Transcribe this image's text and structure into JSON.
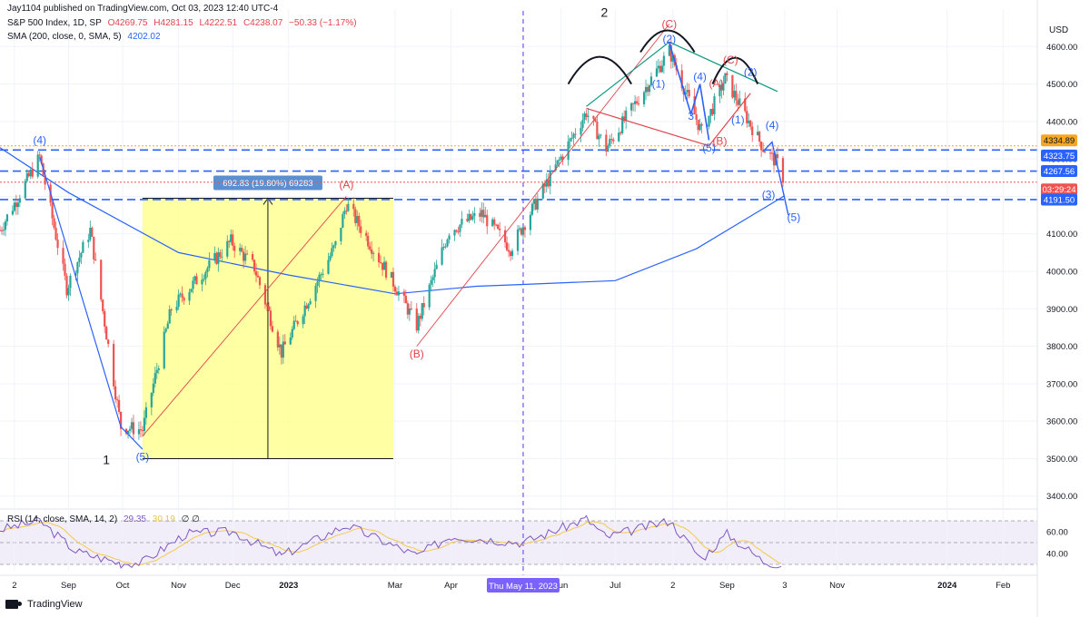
{
  "publisher": "Jay1104 published on TradingView.com, Oct 03, 2023 12:40 UTC-4",
  "header": {
    "symbol": "S&P 500 Index, 1D, SP",
    "open": "O4269.75",
    "high": "H4281.15",
    "low": "L4222.51",
    "close": "C4238.07",
    "change": "−50.33 (−1.17%)",
    "sma_label": "SMA (200, close, 0, SMA, 5)",
    "sma_value": "4202.02",
    "rsi_label": "RSI (14, close, SMA, 14, 2)",
    "rsi_value": "29.35",
    "rsi_sma_value": "30.19",
    "rsi_zeros": "∅ ∅"
  },
  "currency": "USD",
  "footer_brand": "TradingView",
  "colors": {
    "candle_up": "#26a69a",
    "candle_down": "#ef5350",
    "sma": "#2962ff",
    "rsi": "#7e57c2",
    "rsi_ma": "#f2c94c",
    "elliott_red": "#e0454b",
    "elliott_blue": "#2962ff",
    "highlight_box": "#ffff8c",
    "trendline_green": "#089981",
    "level_orange": "#f5a623"
  },
  "chart_data": {
    "type": "candlestick",
    "x_range": [
      "2022-07-25",
      "2024-02-20"
    ],
    "y_range": [
      3380,
      4700
    ],
    "time_ticks": [
      {
        "label": "2",
        "date": "2022-08-02"
      },
      {
        "label": "Sep",
        "date": "2022-09-01"
      },
      {
        "label": "Oct",
        "date": "2022-10-01"
      },
      {
        "label": "Nov",
        "date": "2022-11-01"
      },
      {
        "label": "Dec",
        "date": "2022-12-01"
      },
      {
        "label": "2023",
        "date": "2023-01-01"
      },
      {
        "label": "Mar",
        "date": "2023-03-01"
      },
      {
        "label": "Apr",
        "date": "2023-04-01"
      },
      {
        "label": "Jun",
        "date": "2023-06-01"
      },
      {
        "label": "Jul",
        "date": "2023-07-01"
      },
      {
        "label": "2",
        "date": "2023-08-02"
      },
      {
        "label": "Sep",
        "date": "2023-09-01"
      },
      {
        "label": "3",
        "date": "2023-10-03"
      },
      {
        "label": "Nov",
        "date": "2023-11-01"
      },
      {
        "label": "2024",
        "date": "2024-01-01"
      },
      {
        "label": "Feb",
        "date": "2024-02-01"
      }
    ],
    "price_ticks": [
      "3400.00",
      "3500.00",
      "3600.00",
      "3700.00",
      "3800.00",
      "3900.00",
      "4000.00",
      "4100.00",
      "4200.00",
      "4300.00",
      "4400.00",
      "4500.00",
      "4600.00"
    ],
    "crosshair_date_label": "Thu May 11, 2023",
    "crosshair_date": "2023-05-11",
    "price_path": [
      [
        "2022-07-25",
        4110
      ],
      [
        "2022-08-16",
        4305
      ],
      [
        "2022-08-31",
        3955
      ],
      [
        "2022-09-13",
        4110
      ],
      [
        "2022-09-30",
        3585
      ],
      [
        "2022-10-12",
        3577
      ],
      [
        "2022-10-28",
        3900
      ],
      [
        "2022-11-30",
        4080
      ],
      [
        "2022-12-13",
        4010
      ],
      [
        "2022-12-28",
        3783
      ],
      [
        "2023-01-27",
        4070
      ],
      [
        "2023-02-02",
        4180
      ],
      [
        "2023-02-28",
        3970
      ],
      [
        "2023-03-13",
        3855
      ],
      [
        "2023-03-31",
        4109
      ],
      [
        "2023-04-18",
        4154
      ],
      [
        "2023-05-04",
        4061
      ],
      [
        "2023-05-19",
        4191
      ],
      [
        "2023-06-15",
        4425
      ],
      [
        "2023-06-26",
        4328
      ],
      [
        "2023-07-31",
        4588
      ],
      [
        "2023-08-18",
        4370
      ],
      [
        "2023-08-31",
        4515
      ],
      [
        "2023-09-21",
        4330
      ],
      [
        "2023-09-29",
        4288
      ],
      [
        "2023-10-03",
        4238
      ]
    ],
    "sma200_path": [
      [
        "2022-07-25",
        4330
      ],
      [
        "2022-09-01",
        4210
      ],
      [
        "2022-11-01",
        4050
      ],
      [
        "2023-01-01",
        3990
      ],
      [
        "2023-03-01",
        3940
      ],
      [
        "2023-04-15",
        3960
      ],
      [
        "2023-05-11",
        3965
      ],
      [
        "2023-07-01",
        3975
      ],
      [
        "2023-08-15",
        4060
      ],
      [
        "2023-10-03",
        4202
      ]
    ],
    "price_levels": [
      {
        "value": 4334.89,
        "label": "4334.89",
        "style": "dotted",
        "color": "#f5a623"
      },
      {
        "value": 4323.75,
        "label": "4323.75",
        "style": "dashed",
        "color": "#2962ff"
      },
      {
        "value": 4267.56,
        "label": "4267.56",
        "style": "dashed",
        "color": "#2962ff"
      },
      {
        "value": 4191.5,
        "label": "4191.50",
        "style": "dashed",
        "color": "#2962ff"
      },
      {
        "value": 4238.07,
        "label": "03:29:24",
        "style": "dotted",
        "color": "#ef5350"
      }
    ],
    "measure_box": {
      "start": "2022-10-12",
      "end": "2023-02-28",
      "low": 3500,
      "high": 4195,
      "label": "692.83 (19.80%) 69283"
    },
    "wave_labels": [
      {
        "text": "(4)",
        "date": "2022-08-16",
        "price": 4340,
        "color": "blue"
      },
      {
        "text": "(5)",
        "date": "2022-10-12",
        "price": 3495,
        "color": "blue"
      },
      {
        "text": "1",
        "date": "2022-09-22",
        "price": 3485,
        "color": "black"
      },
      {
        "text": "(A)",
        "date": "2023-02-02",
        "price": 4222,
        "color": "red"
      },
      {
        "text": "(B)",
        "date": "2023-03-13",
        "price": 3770,
        "color": "red"
      },
      {
        "text": "2",
        "date": "2023-06-25",
        "price": 4680,
        "color": "black"
      },
      {
        "text": "(C)",
        "date": "2023-07-31",
        "price": 4650,
        "color": "red"
      },
      {
        "text": "(2)",
        "date": "2023-07-31",
        "price": 4610,
        "color": "blue"
      },
      {
        "text": "(1)",
        "date": "2023-07-25",
        "price": 4490,
        "color": "blue"
      },
      {
        "text": "(4)",
        "date": "2023-08-17",
        "price": 4510,
        "color": "blue"
      },
      {
        "text": "3",
        "date": "2023-08-12",
        "price": 4405,
        "color": "blue"
      },
      {
        "text": "(A)",
        "date": "2023-08-26",
        "price": 4492,
        "color": "red"
      },
      {
        "text": "(C)",
        "date": "2023-09-03",
        "price": 4555,
        "color": "red"
      },
      {
        "text": "(2)",
        "date": "2023-09-14",
        "price": 4522,
        "color": "blue"
      },
      {
        "text": "(B)",
        "date": "2023-08-28",
        "price": 4338,
        "color": "red"
      },
      {
        "text": "(5)",
        "date": "2023-08-22",
        "price": 4320,
        "color": "blue"
      },
      {
        "text": "(1)",
        "date": "2023-09-07",
        "price": 4395,
        "color": "blue"
      },
      {
        "text": "(4)",
        "date": "2023-09-26",
        "price": 4380,
        "color": "blue"
      },
      {
        "text": "(3)",
        "date": "2023-09-24",
        "price": 4195,
        "color": "blue"
      },
      {
        "text": "(5)",
        "date": "2023-10-08",
        "price": 4135,
        "color": "blue"
      }
    ],
    "rsi": {
      "y_ticks": [
        "60.00",
        "40.00"
      ],
      "upper_band": 70,
      "mid_band": 50,
      "lower_band": 30,
      "path": [
        [
          "2022-07-25",
          62
        ],
        [
          "2022-08-16",
          70
        ],
        [
          "2022-09-05",
          42
        ],
        [
          "2022-09-30",
          31
        ],
        [
          "2022-10-12",
          32
        ],
        [
          "2022-11-05",
          58
        ],
        [
          "2022-12-01",
          60
        ],
        [
          "2022-12-28",
          38
        ],
        [
          "2023-02-02",
          66
        ],
        [
          "2023-03-13",
          38
        ],
        [
          "2023-04-01",
          56
        ],
        [
          "2023-05-11",
          50
        ],
        [
          "2023-06-15",
          72
        ],
        [
          "2023-06-26",
          55
        ],
        [
          "2023-07-31",
          70
        ],
        [
          "2023-08-18",
          35
        ],
        [
          "2023-09-01",
          58
        ],
        [
          "2023-09-21",
          33
        ],
        [
          "2023-10-03",
          29
        ]
      ]
    }
  }
}
